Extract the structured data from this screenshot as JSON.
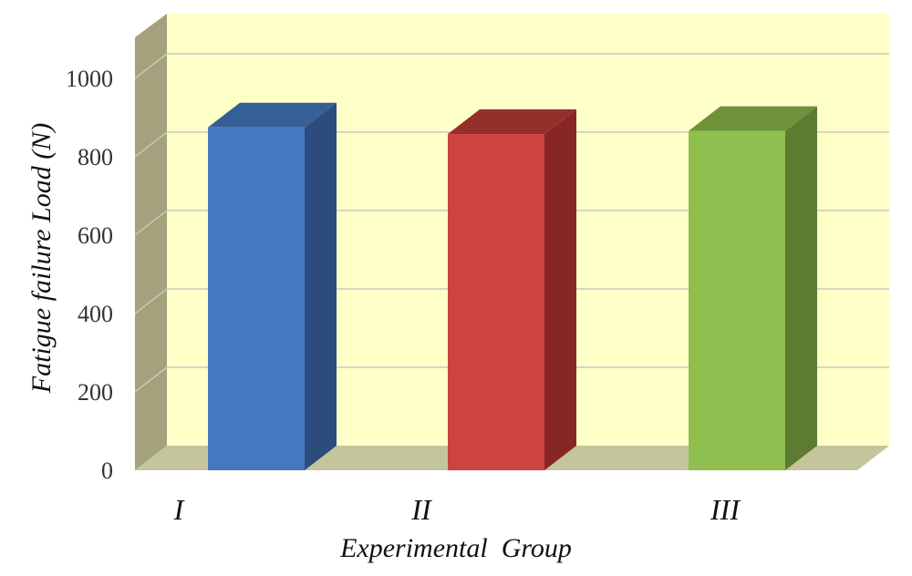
{
  "chart_data": {
    "type": "bar",
    "style": "3d-column",
    "categories": [
      "I",
      "II",
      "III"
    ],
    "values": [
      875,
      858,
      866
    ],
    "bar_colors": [
      "#4479C2",
      "#CC4340",
      "#8EBF4F"
    ],
    "bar_side_colors": [
      "#2B4C7D",
      "#862726",
      "#5E7C31"
    ],
    "bar_top_colors": [
      "#355F96",
      "#952F2C",
      "#6E9239"
    ],
    "title": "",
    "xlabel": "Experimental  Group",
    "ylabel": "Fatigue failure Load (N)",
    "ylim": [
      0,
      1000
    ],
    "yticks": [
      0,
      200,
      400,
      600,
      800,
      1000
    ],
    "grid": true,
    "legend": "none",
    "wall_color": "#FFFFC8",
    "side_wall_color": "#A3A27D",
    "floor_color": "#C5C59B",
    "gridline_color": "#D7D7C3"
  }
}
